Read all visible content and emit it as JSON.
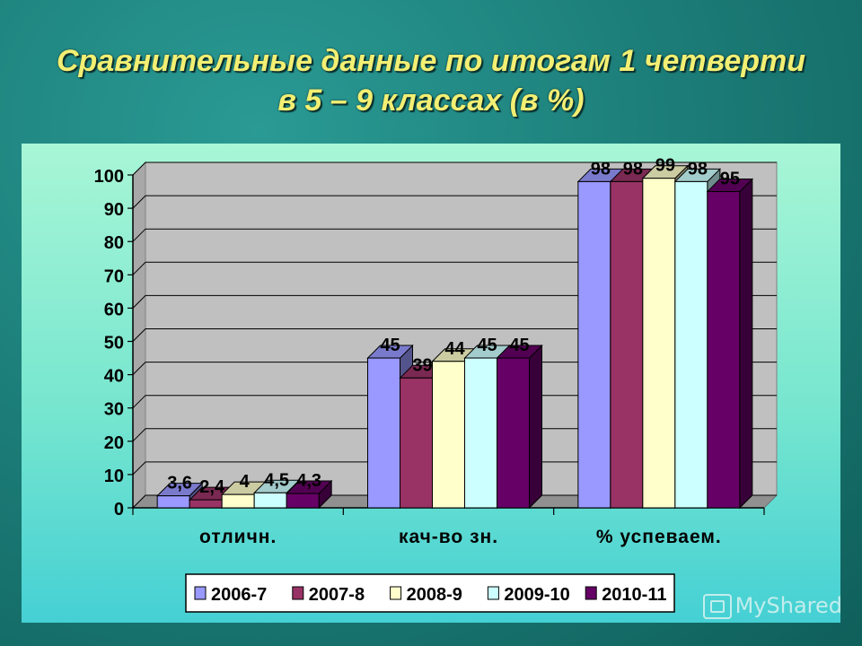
{
  "chart_data": {
    "type": "bar",
    "title_line1": "Сравнительные данные по итогам 1 четверти",
    "title_line2": "в 5 – 9 классах (в %)",
    "categories": [
      "отличн.",
      "кач-во зн.",
      "% успеваем."
    ],
    "ylim": [
      0,
      100
    ],
    "yticks": [
      0,
      10,
      20,
      30,
      40,
      50,
      60,
      70,
      80,
      90,
      100
    ],
    "grid": true,
    "legend_position": "bottom",
    "series": [
      {
        "name": "2006-7",
        "color": "#9999ff",
        "values": [
          3.6,
          45,
          98
        ]
      },
      {
        "name": "2007-8",
        "color": "#993366",
        "values": [
          2.4,
          39,
          98
        ]
      },
      {
        "name": "2008-9",
        "color": "#ffffcc",
        "values": [
          4,
          44,
          99
        ]
      },
      {
        "name": "2009-10",
        "color": "#ccffff",
        "values": [
          4.5,
          45,
          98
        ]
      },
      {
        "name": "2010-11",
        "color": "#660066",
        "values": [
          4.3,
          45,
          95
        ]
      }
    ],
    "value_labels": [
      [
        "3,6",
        "45",
        "98"
      ],
      [
        "2,4",
        "39",
        "98"
      ],
      [
        "4",
        "44",
        "99"
      ],
      [
        "4,5",
        "45",
        "98"
      ],
      [
        "4,3",
        "45",
        "95"
      ]
    ]
  },
  "watermark": "MyShared"
}
